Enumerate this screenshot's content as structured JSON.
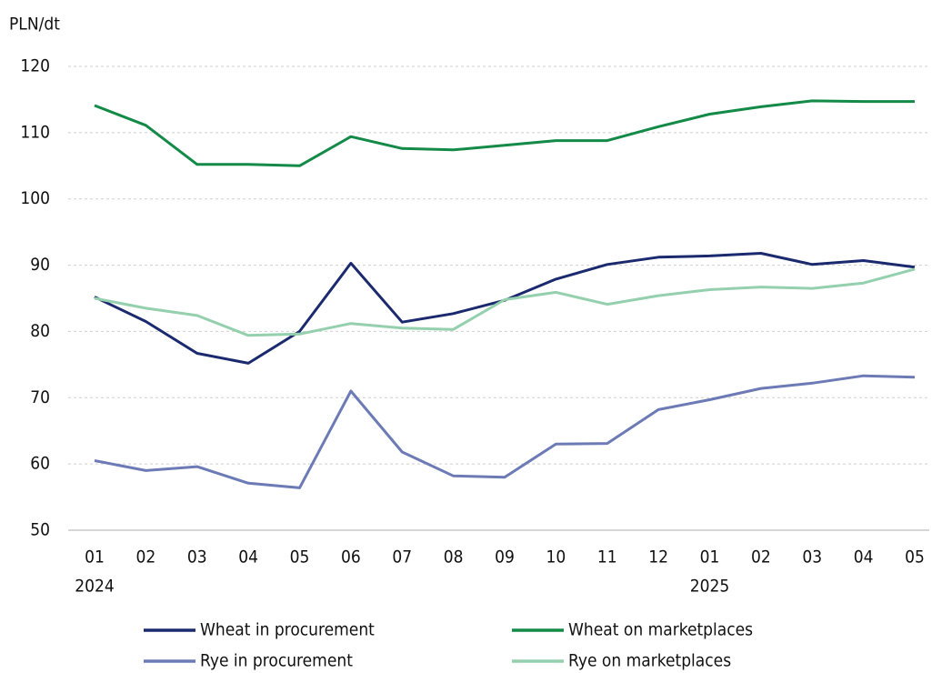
{
  "chart_data": {
    "type": "line",
    "y_axis_label": "PLN/dt",
    "categories": [
      "01",
      "02",
      "03",
      "04",
      "05",
      "06",
      "07",
      "08",
      "09",
      "10",
      "11",
      "12",
      "01",
      "02",
      "03",
      "04",
      "05"
    ],
    "year_labels": [
      "2024",
      null,
      null,
      null,
      null,
      null,
      null,
      null,
      null,
      null,
      null,
      null,
      "2025",
      null,
      null,
      null,
      null
    ],
    "series": [
      {
        "name": "Wheat in procurement",
        "color": "#1b2a6e",
        "values": [
          85.2,
          81.5,
          76.7,
          75.2,
          80.0,
          90.3,
          81.4,
          82.7,
          84.7,
          87.9,
          90.1,
          91.2,
          91.4,
          91.8,
          90.1,
          90.7,
          89.7
        ]
      },
      {
        "name": "Wheat on marketplaces",
        "color": "#138a47",
        "values": [
          114.1,
          111.1,
          105.2,
          105.2,
          105.0,
          109.4,
          107.6,
          107.4,
          108.1,
          108.8,
          108.8,
          110.9,
          112.8,
          113.9,
          114.8,
          114.7,
          114.7
        ]
      },
      {
        "name": "Rye in procurement",
        "color": "#6c7ab5",
        "values": [
          60.5,
          59.0,
          59.6,
          57.1,
          56.4,
          71.0,
          61.8,
          58.2,
          58.0,
          63.0,
          63.1,
          68.2,
          69.7,
          71.4,
          72.2,
          73.3,
          73.1
        ]
      },
      {
        "name": "Rye on marketplaces",
        "color": "#94d0ae",
        "values": [
          85.0,
          83.5,
          82.4,
          79.4,
          79.6,
          81.2,
          80.5,
          80.3,
          84.8,
          85.9,
          84.1,
          85.4,
          86.3,
          86.7,
          86.5,
          87.3,
          89.4
        ]
      }
    ],
    "ylim": [
      50,
      120
    ],
    "yticks": [
      50,
      60,
      70,
      80,
      90,
      100,
      110,
      120
    ],
    "grid": true,
    "legend": "bottom"
  }
}
